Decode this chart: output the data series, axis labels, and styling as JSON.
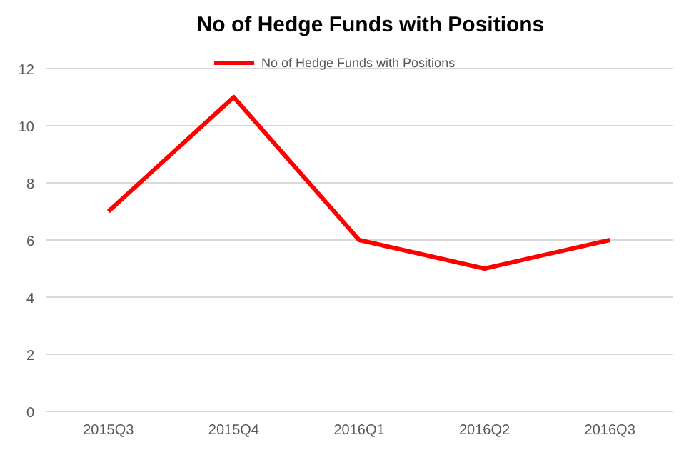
{
  "chart_data": {
    "type": "line",
    "title": "No of Hedge Funds with Positions",
    "categories": [
      "2015Q3",
      "2015Q4",
      "2016Q1",
      "2016Q2",
      "2016Q3"
    ],
    "series": [
      {
        "name": "No of Hedge Funds with Positions",
        "color": "#ff0000",
        "values": [
          7,
          11,
          6,
          5,
          6
        ]
      }
    ],
    "ylim": [
      0,
      12
    ],
    "yticks": [
      0,
      2,
      4,
      6,
      8,
      10,
      12
    ],
    "grid": "y",
    "legend": "top",
    "marker": "none"
  }
}
